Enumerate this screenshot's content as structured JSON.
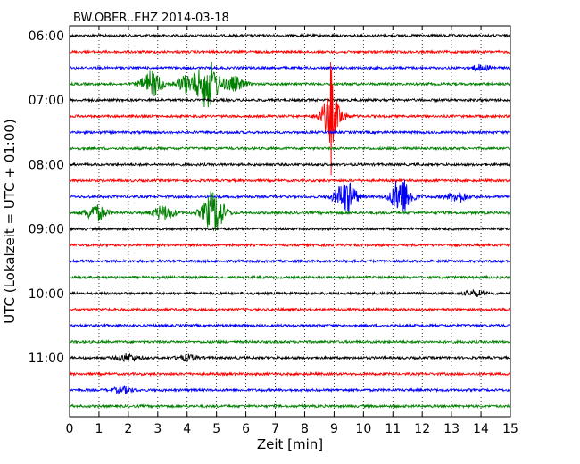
{
  "chart_data": {
    "type": "line",
    "subtype": "seismogram-dayplot",
    "title": "BW.OBER..EHZ 2014-03-18",
    "xlabel": "Zeit  [min]",
    "ylabel": "UTC (Lokalzeit = UTC + 01:00)",
    "xlim": [
      0,
      15
    ],
    "x_ticks": [
      "0",
      "1",
      "2",
      "3",
      "4",
      "5",
      "6",
      "7",
      "8",
      "9",
      "10",
      "11",
      "12",
      "13",
      "14",
      "15"
    ],
    "y_tick_labels": [
      "06:00",
      "07:00",
      "08:00",
      "09:00",
      "10:00",
      "11:00"
    ],
    "grid": "vertical dotted",
    "legend": "none",
    "colors_cycle": [
      "#000000",
      "#ff0000",
      "#0000ff",
      "#008000"
    ],
    "traces": [
      {
        "start": "06:00",
        "color": "#000000",
        "bursts": []
      },
      {
        "start": "06:15",
        "color": "#ff0000",
        "bursts": []
      },
      {
        "start": "06:30",
        "color": "#0000ff",
        "bursts": [
          {
            "t": 14.0,
            "amp": 3
          }
        ]
      },
      {
        "start": "06:45",
        "color": "#008000",
        "bursts": [
          {
            "t": 2.8,
            "amp": 14
          },
          {
            "t": 4.0,
            "amp": 10
          },
          {
            "t": 4.7,
            "amp": 28
          },
          {
            "t": 5.6,
            "amp": 8
          }
        ]
      },
      {
        "start": "07:00",
        "color": "#000000",
        "bursts": []
      },
      {
        "start": "07:15",
        "color": "#ff0000",
        "bursts": [
          {
            "t": 8.9,
            "amp": 22
          },
          {
            "t": 8.9,
            "amp": 45
          }
        ]
      },
      {
        "start": "07:30",
        "color": "#0000ff",
        "bursts": []
      },
      {
        "start": "07:45",
        "color": "#008000",
        "bursts": []
      },
      {
        "start": "08:00",
        "color": "#000000",
        "bursts": []
      },
      {
        "start": "08:15",
        "color": "#ff0000",
        "bursts": []
      },
      {
        "start": "08:30",
        "color": "#0000ff",
        "bursts": [
          {
            "t": 9.4,
            "amp": 18
          },
          {
            "t": 11.3,
            "amp": 22
          },
          {
            "t": 13.2,
            "amp": 6
          }
        ]
      },
      {
        "start": "08:45",
        "color": "#008000",
        "bursts": [
          {
            "t": 0.9,
            "amp": 9
          },
          {
            "t": 3.2,
            "amp": 8
          },
          {
            "t": 4.9,
            "amp": 24
          }
        ]
      },
      {
        "start": "09:00",
        "color": "#000000",
        "bursts": []
      },
      {
        "start": "09:15",
        "color": "#ff0000",
        "bursts": []
      },
      {
        "start": "09:30",
        "color": "#0000ff",
        "bursts": []
      },
      {
        "start": "09:45",
        "color": "#008000",
        "bursts": []
      },
      {
        "start": "10:00",
        "color": "#000000",
        "bursts": [
          {
            "t": 13.8,
            "amp": 3
          }
        ]
      },
      {
        "start": "10:15",
        "color": "#ff0000",
        "bursts": []
      },
      {
        "start": "10:30",
        "color": "#0000ff",
        "bursts": []
      },
      {
        "start": "10:45",
        "color": "#008000",
        "bursts": []
      },
      {
        "start": "11:00",
        "color": "#000000",
        "bursts": [
          {
            "t": 2.0,
            "amp": 4
          },
          {
            "t": 4.0,
            "amp": 3
          }
        ]
      },
      {
        "start": "11:15",
        "color": "#ff0000",
        "bursts": []
      },
      {
        "start": "11:30",
        "color": "#0000ff",
        "bursts": [
          {
            "t": 1.8,
            "amp": 3
          }
        ]
      },
      {
        "start": "11:45",
        "color": "#008000",
        "bursts": []
      }
    ]
  }
}
